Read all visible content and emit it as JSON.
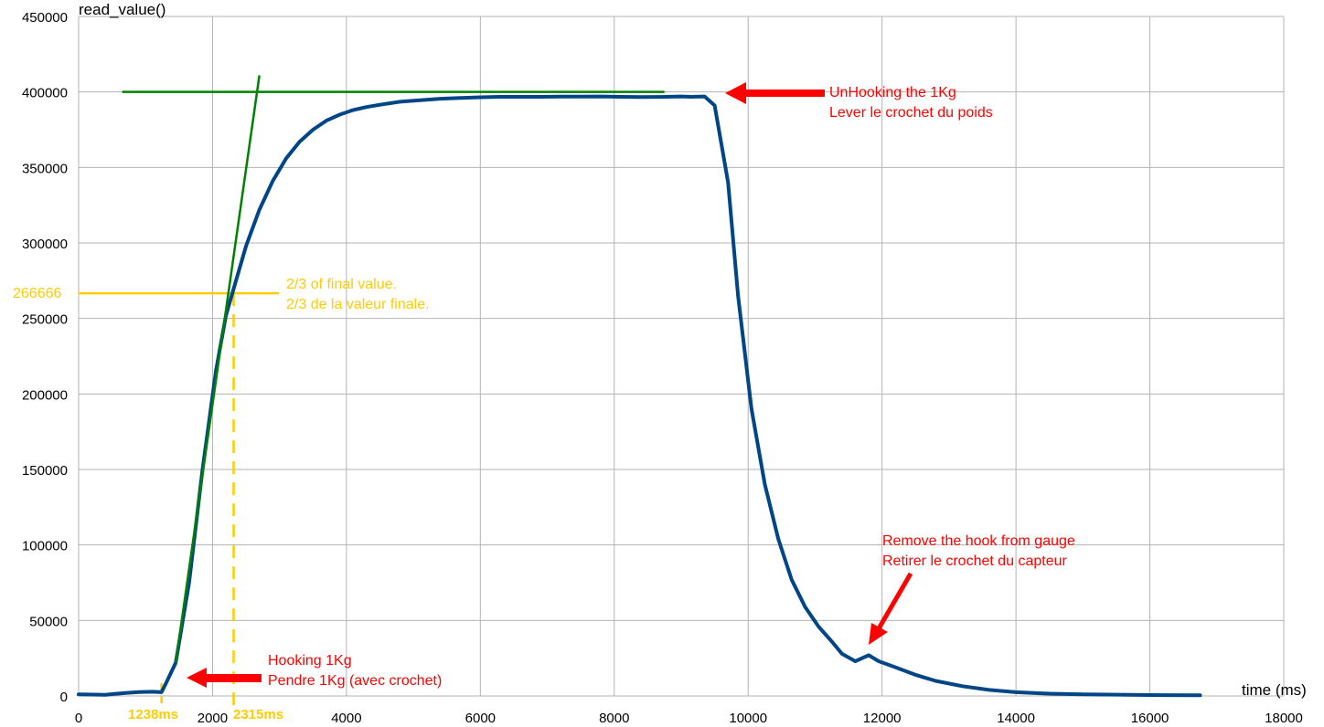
{
  "chart_data": {
    "type": "line",
    "xlabel": "time (ms)",
    "ylabel": "read_value()",
    "xlim": [
      0,
      18000
    ],
    "ylim": [
      0,
      450000
    ],
    "x_ticks": [
      0,
      2000,
      4000,
      6000,
      8000,
      10000,
      12000,
      14000,
      16000,
      18000
    ],
    "y_ticks": [
      0,
      50000,
      100000,
      150000,
      200000,
      250000,
      300000,
      350000,
      400000,
      450000
    ],
    "grid": true,
    "series": [
      {
        "color": "#004586",
        "points": [
          [
            0,
            1000
          ],
          [
            400,
            800
          ],
          [
            700,
            2000
          ],
          [
            900,
            2600
          ],
          [
            1100,
            2800
          ],
          [
            1238,
            2500
          ],
          [
            1300,
            8000
          ],
          [
            1450,
            22000
          ],
          [
            1650,
            75000
          ],
          [
            1850,
            150000
          ],
          [
            2050,
            215000
          ],
          [
            2200,
            252000
          ],
          [
            2350,
            275000
          ],
          [
            2500,
            298000
          ],
          [
            2700,
            322000
          ],
          [
            2900,
            341000
          ],
          [
            3100,
            356000
          ],
          [
            3300,
            367000
          ],
          [
            3500,
            375000
          ],
          [
            3700,
            381000
          ],
          [
            3900,
            385000
          ],
          [
            4100,
            388000
          ],
          [
            4300,
            390000
          ],
          [
            4500,
            391500
          ],
          [
            4800,
            393500
          ],
          [
            5100,
            394500
          ],
          [
            5400,
            395500
          ],
          [
            5700,
            396000
          ],
          [
            6000,
            396500
          ],
          [
            6300,
            396800
          ],
          [
            6600,
            396800
          ],
          [
            6900,
            396800
          ],
          [
            7200,
            396900
          ],
          [
            7500,
            396900
          ],
          [
            7800,
            397000
          ],
          [
            8100,
            396800
          ],
          [
            8400,
            396600
          ],
          [
            8700,
            396700
          ],
          [
            9000,
            397000
          ],
          [
            9150,
            396800
          ],
          [
            9350,
            397000
          ],
          [
            9500,
            391000
          ],
          [
            9700,
            340000
          ],
          [
            9850,
            265000
          ],
          [
            10050,
            190000
          ],
          [
            10250,
            140000
          ],
          [
            10450,
            104000
          ],
          [
            10650,
            77000
          ],
          [
            10850,
            59000
          ],
          [
            11050,
            46000
          ],
          [
            11250,
            36000
          ],
          [
            11400,
            28000
          ],
          [
            11600,
            23000
          ],
          [
            11800,
            27000
          ],
          [
            11950,
            23000
          ],
          [
            12200,
            19000
          ],
          [
            12500,
            14000
          ],
          [
            12800,
            10000
          ],
          [
            13200,
            6500
          ],
          [
            13600,
            4000
          ],
          [
            14000,
            2500
          ],
          [
            14500,
            1500
          ],
          [
            15000,
            1000
          ],
          [
            16000,
            600
          ],
          [
            16750,
            400
          ]
        ]
      }
    ],
    "tangent_line": {
      "color": "#008000",
      "points": [
        [
          1450,
          22000
        ],
        [
          2700,
          411000
        ]
      ]
    },
    "final_value_line": {
      "color": "#008000",
      "y": 400000,
      "x_start": 650,
      "x_end": 8750
    },
    "annotations": {
      "two_thirds_value": "266666",
      "two_thirds_text_1": "2/3 of  final value.",
      "two_thirds_text_2": "2/3 de la valeur finale.",
      "start_time": "1238ms",
      "tau_time": "2315ms",
      "hooking_1": "Hooking 1Kg",
      "hooking_2": "Pendre 1Kg (avec crochet)",
      "unhooking_1": "UnHooking the 1Kg",
      "unhooking_2": "Lever le crochet du poids",
      "remove_1": "Remove the hook from gauge",
      "remove_2": "Retirer le crochet du capteur",
      "annotation_color": "#ff0000",
      "highlight_color": "#ffcc00"
    }
  }
}
